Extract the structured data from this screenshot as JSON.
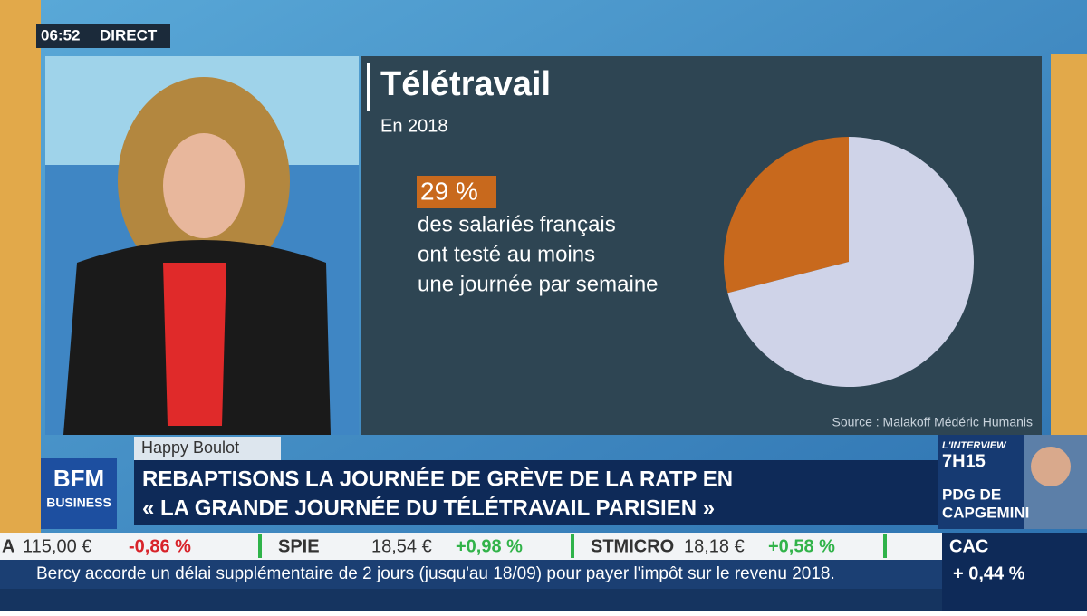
{
  "clock": "06:52",
  "live": "DIRECT",
  "chart_data": {
    "type": "pie",
    "title": "Télétravail",
    "subtitle": "En 2018",
    "values": [
      29,
      71
    ],
    "value_labels": [
      "29 %",
      null
    ],
    "colors": [
      "#c8691d",
      "#cfd3e8"
    ],
    "caption": [
      "des salariés français",
      "ont testé au moins",
      "une journée par semaine"
    ],
    "source": "Source : Malakoff Médéric Humanis"
  },
  "show": "Happy Boulot",
  "logo": [
    "BFM",
    "BUSINESS"
  ],
  "headline": [
    "REBAPTISONS LA JOURNÉE DE GRÈVE DE LA RATP EN",
    "« LA GRANDE JOURNÉE DU TÉLÉTRAVAIL PARISIEN »"
  ],
  "interview": {
    "label": "L'INTERVIEW",
    "time": "7H15",
    "guest": [
      "PDG DE",
      "CAPGEMINI"
    ]
  },
  "stocks": [
    {
      "name": "A",
      "price": "115,00 €",
      "change": "-0,86 %",
      "trend": "down"
    },
    {
      "name": "SPIE",
      "price": "18,54 €",
      "change": "+0,98 %",
      "trend": "up"
    },
    {
      "name": "STMICRO",
      "price": "18,18 €",
      "change": "+0,58 %",
      "trend": "up"
    }
  ],
  "index": {
    "name": "CAC",
    "change": "+ 0,44 %"
  },
  "crawl": "Bercy accorde un délai supplémentaire de 2 jours (jusqu'au 18/09) pour payer l'impôt sur le revenu 2018."
}
